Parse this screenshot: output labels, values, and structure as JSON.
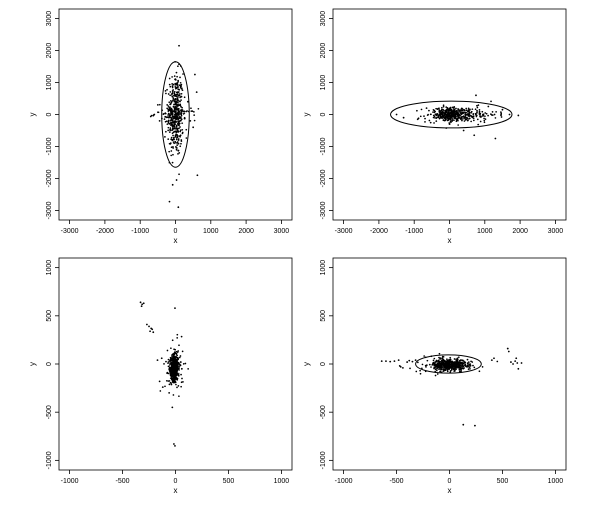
{
  "chart_data": [
    {
      "type": "scatter",
      "xlabel": "x",
      "ylabel": "y",
      "xlim": [
        -3300,
        3300
      ],
      "ylim": [
        -3300,
        3300
      ],
      "xticks": [
        -3000,
        -2000,
        -1000,
        0,
        1000,
        2000,
        3000
      ],
      "yticks": [
        -3000,
        -2000,
        -1000,
        0,
        1000,
        2000,
        3000
      ],
      "xtick_labels": [
        "-3000",
        "-2000",
        "-1000",
        "0",
        "1000",
        "2000",
        "3000"
      ],
      "ytick_labels": [
        "-3000",
        "-2000",
        "-1000",
        "0",
        "1000",
        "2000",
        "3000"
      ],
      "grid": false,
      "ellipse": {
        "cx": 0,
        "cy": 0,
        "rx": 390,
        "ry": 1650
      },
      "clusters": [
        {
          "cx": 0,
          "cy": 0,
          "sx": 110,
          "sy": 650,
          "n": 420
        },
        {
          "cx": 0,
          "cy": 0,
          "sx": 300,
          "sy": 90,
          "n": 70
        }
      ],
      "points": [
        {
          "x": 100,
          "y": 2150
        },
        {
          "x": 80,
          "y": -2900
        },
        {
          "x": -80,
          "y": -2200
        },
        {
          "x": 30,
          "y": -2050
        },
        {
          "x": -500,
          "y": 300
        },
        {
          "x": -600,
          "y": 0
        },
        {
          "x": 550,
          "y": 1250
        },
        {
          "x": 600,
          "y": 700
        },
        {
          "x": 420,
          "y": -200
        },
        {
          "x": 500,
          "y": -400
        },
        {
          "x": 620,
          "y": -1900
        },
        {
          "x": -300,
          "y": -700
        },
        {
          "x": 350,
          "y": 400
        },
        {
          "x": -450,
          "y": -200
        }
      ]
    },
    {
      "type": "scatter",
      "xlabel": "x",
      "ylabel": "y",
      "xlim": [
        -3300,
        3300
      ],
      "ylim": [
        -3300,
        3300
      ],
      "xticks": [
        -3000,
        -2000,
        -1000,
        0,
        1000,
        2000,
        3000
      ],
      "yticks": [
        -3000,
        -2000,
        -1000,
        0,
        1000,
        2000,
        3000
      ],
      "xtick_labels": [
        "-3000",
        "-2000",
        "-1000",
        "0",
        "1000",
        "2000",
        "3000"
      ],
      "ytick_labels": [
        "-3000",
        "-2000",
        "-1000",
        "0",
        "1000",
        "2000",
        "3000"
      ],
      "grid": false,
      "ellipse": {
        "cx": 50,
        "cy": 0,
        "rx": 1720,
        "ry": 420
      },
      "clusters": [
        {
          "cx": 0,
          "cy": 0,
          "sx": 180,
          "sy": 110,
          "n": 240
        },
        {
          "cx": 350,
          "cy": 0,
          "sx": 500,
          "sy": 120,
          "n": 230
        }
      ],
      "points": [
        {
          "x": 1700,
          "y": 0
        },
        {
          "x": 1950,
          "y": -30
        },
        {
          "x": -1500,
          "y": 0
        },
        {
          "x": -1300,
          "y": -100
        },
        {
          "x": 1300,
          "y": -750
        },
        {
          "x": 700,
          "y": -650
        },
        {
          "x": 750,
          "y": 600
        },
        {
          "x": -650,
          "y": 200
        },
        {
          "x": 1100,
          "y": 250
        },
        {
          "x": -900,
          "y": -150
        },
        {
          "x": 1500,
          "y": 150
        },
        {
          "x": 400,
          "y": -500
        }
      ]
    },
    {
      "type": "scatter",
      "xlabel": "x",
      "ylabel": "y",
      "xlim": [
        -1100,
        1100
      ],
      "ylim": [
        -1100,
        1100
      ],
      "xticks": [
        -1000,
        -500,
        0,
        500,
        1000
      ],
      "yticks": [
        -1000,
        -500,
        0,
        500,
        1000
      ],
      "xtick_labels": [
        "-1000",
        "-500",
        "0",
        "500",
        "1000"
      ],
      "ytick_labels": [
        "-1000",
        "-500",
        "0",
        "500",
        "1000"
      ],
      "grid": false,
      "ellipse": {
        "cx": -10,
        "cy": -40,
        "rx": 45,
        "ry": 155,
        "dashed": true
      },
      "clusters": [
        {
          "cx": -10,
          "cy": -40,
          "sx": 18,
          "sy": 65,
          "n": 520
        },
        {
          "cx": -10,
          "cy": -40,
          "sx": 45,
          "sy": 130,
          "n": 90
        }
      ],
      "points": [
        {
          "x": -330,
          "y": 640
        },
        {
          "x": -315,
          "y": 620
        },
        {
          "x": -300,
          "y": 630
        },
        {
          "x": -320,
          "y": 600
        },
        {
          "x": -270,
          "y": 410
        },
        {
          "x": -250,
          "y": 390
        },
        {
          "x": -230,
          "y": 370
        },
        {
          "x": -240,
          "y": 340
        },
        {
          "x": -210,
          "y": 330
        },
        {
          "x": -220,
          "y": 360
        },
        {
          "x": -5,
          "y": 580
        },
        {
          "x": -15,
          "y": -830
        },
        {
          "x": -5,
          "y": -850
        },
        {
          "x": -150,
          "y": -180
        },
        {
          "x": -120,
          "y": -240
        },
        {
          "x": -60,
          "y": -300
        },
        {
          "x": -30,
          "y": -450
        },
        {
          "x": -130,
          "y": 60
        },
        {
          "x": 60,
          "y": -50
        },
        {
          "x": 50,
          "y": 20
        },
        {
          "x": -170,
          "y": 40
        }
      ]
    },
    {
      "type": "scatter",
      "xlabel": "x",
      "ylabel": "y",
      "xlim": [
        -1100,
        1100
      ],
      "ylim": [
        -1100,
        1100
      ],
      "xticks": [
        -1000,
        -500,
        0,
        500,
        1000
      ],
      "yticks": [
        -1000,
        -500,
        0,
        500,
        1000
      ],
      "xtick_labels": [
        "-1000",
        "-500",
        "0",
        "500",
        "1000"
      ],
      "ytick_labels": [
        "-1000",
        "-500",
        "0",
        "500",
        "1000"
      ],
      "grid": false,
      "ellipse": {
        "cx": -10,
        "cy": 0,
        "rx": 310,
        "ry": 95
      },
      "clusters": [
        {
          "cx": 0,
          "cy": -10,
          "sx": 75,
          "sy": 26,
          "n": 460
        },
        {
          "cx": -20,
          "cy": 0,
          "sx": 170,
          "sy": 45,
          "n": 110
        }
      ],
      "points": [
        {
          "x": -640,
          "y": 30
        },
        {
          "x": -600,
          "y": 30
        },
        {
          "x": -560,
          "y": 25
        },
        {
          "x": -520,
          "y": 30
        },
        {
          "x": -480,
          "y": 40
        },
        {
          "x": -470,
          "y": -20
        },
        {
          "x": -440,
          "y": -40
        },
        {
          "x": -400,
          "y": 20
        },
        {
          "x": -380,
          "y": 35
        },
        {
          "x": -350,
          "y": 25
        },
        {
          "x": -320,
          "y": 40
        },
        {
          "x": -460,
          "y": -30
        },
        {
          "x": 130,
          "y": -630
        },
        {
          "x": 240,
          "y": -640
        },
        {
          "x": 400,
          "y": 40
        },
        {
          "x": 420,
          "y": 60
        },
        {
          "x": 550,
          "y": 160
        },
        {
          "x": 560,
          "y": 130
        },
        {
          "x": 580,
          "y": 20
        },
        {
          "x": 600,
          "y": 0
        },
        {
          "x": 620,
          "y": 30
        },
        {
          "x": 640,
          "y": 10
        },
        {
          "x": 650,
          "y": -50
        },
        {
          "x": 680,
          "y": 10
        },
        {
          "x": 630,
          "y": 60
        }
      ]
    }
  ]
}
